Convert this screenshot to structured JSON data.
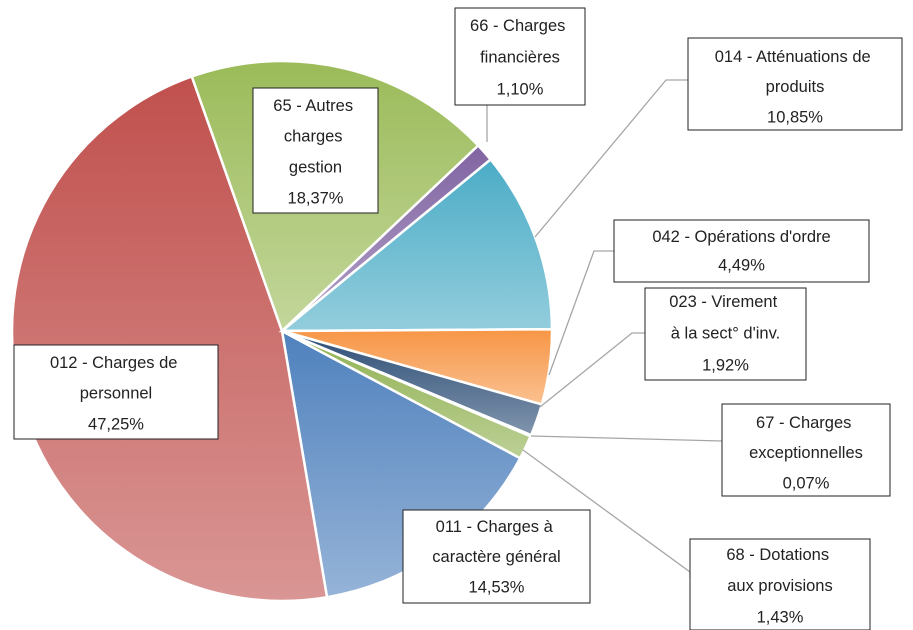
{
  "chart_data": {
    "type": "pie",
    "categories": [
      "011 - Charges à caractère général",
      "012 - Charges de personnel",
      "65 - Autres charges gestion",
      "66 - Charges financières",
      "014 - Atténuations de produits",
      "042 - Opérations d'ordre",
      "023 - Virement à la sect° d'inv.",
      "67 - Charges exceptionnelles",
      "68 - Dotations aux provisions"
    ],
    "values": [
      14.53,
      47.25,
      18.37,
      1.1,
      10.85,
      4.49,
      1.92,
      0.07,
      1.43
    ],
    "value_labels": [
      "14,53%",
      "47,25%",
      "18,37%",
      "1,10%",
      "10,85%",
      "4,49%",
      "1,92%",
      "0,07%",
      "1,43%"
    ],
    "colors": [
      "#4f81bd",
      "#c0504d",
      "#9bbb59",
      "#8064a2",
      "#4bacc6",
      "#f79646",
      "#2c4d75",
      "#772c2a",
      "#8fb04f"
    ]
  }
}
